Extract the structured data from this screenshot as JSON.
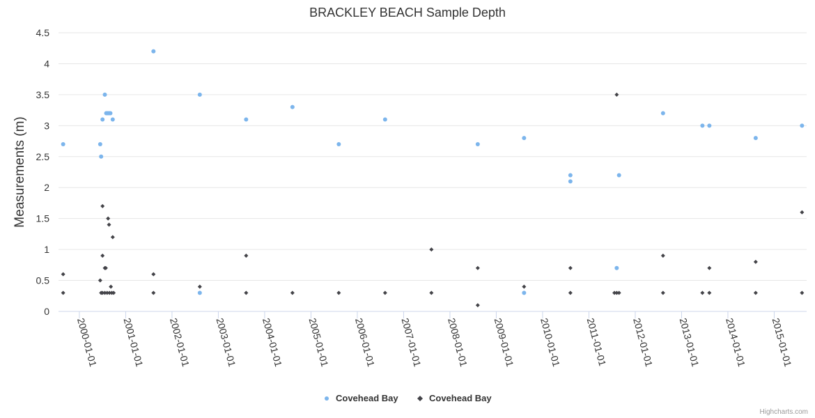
{
  "chart_data": {
    "type": "scatter",
    "title": "BRACKLEY BEACH Sample Depth",
    "ylabel": "Measurements (m)",
    "xlabel": "",
    "ylim": [
      0,
      4.5
    ],
    "yticks": [
      "0",
      "0.5",
      "1",
      "1.5",
      "2",
      "2.5",
      "3",
      "3.5",
      "4",
      "4.5"
    ],
    "xlim": [
      1999.55,
      2015.7
    ],
    "xticks": [
      {
        "year": 2000,
        "label": "2000-01-01"
      },
      {
        "year": 2001,
        "label": "2001-01-01"
      },
      {
        "year": 2002,
        "label": "2002-01-01"
      },
      {
        "year": 2003,
        "label": "2003-01-01"
      },
      {
        "year": 2004,
        "label": "2004-01-01"
      },
      {
        "year": 2005,
        "label": "2005-01-01"
      },
      {
        "year": 2006,
        "label": "2006-01-01"
      },
      {
        "year": 2007,
        "label": "2007-01-01"
      },
      {
        "year": 2008,
        "label": "2008-01-01"
      },
      {
        "year": 2009,
        "label": "2009-01-01"
      },
      {
        "year": 2010,
        "label": "2010-01-01"
      },
      {
        "year": 2011,
        "label": "2011-01-01"
      },
      {
        "year": 2012,
        "label": "2012-01-01"
      },
      {
        "year": 2013,
        "label": "2013-01-01"
      },
      {
        "year": 2014,
        "label": "2014-01-01"
      },
      {
        "year": 2015,
        "label": "2015-01-01"
      }
    ],
    "series": [
      {
        "name": "Covehead Bay",
        "marker": "circle",
        "color": "#7cb5ec",
        "points": [
          [
            1999.65,
            2.7
          ],
          [
            2000.45,
            2.7
          ],
          [
            2000.47,
            2.5
          ],
          [
            2000.5,
            3.1
          ],
          [
            2000.55,
            3.5
          ],
          [
            2000.58,
            3.2
          ],
          [
            2000.61,
            3.2
          ],
          [
            2000.64,
            3.2
          ],
          [
            2000.67,
            3.2
          ],
          [
            2000.72,
            3.1
          ],
          [
            2001.6,
            4.2
          ],
          [
            2002.6,
            3.5
          ],
          [
            2002.6,
            0.3
          ],
          [
            2003.6,
            3.1
          ],
          [
            2004.6,
            3.3
          ],
          [
            2005.6,
            2.7
          ],
          [
            2006.6,
            3.1
          ],
          [
            2008.6,
            2.7
          ],
          [
            2009.6,
            2.8
          ],
          [
            2009.6,
            0.3
          ],
          [
            2010.6,
            2.2
          ],
          [
            2010.6,
            2.1
          ],
          [
            2011.6,
            0.7
          ],
          [
            2011.65,
            2.2
          ],
          [
            2012.6,
            3.2
          ],
          [
            2013.45,
            3.0
          ],
          [
            2013.6,
            3.0
          ],
          [
            2014.6,
            2.8
          ],
          [
            2015.6,
            3.0
          ]
        ]
      },
      {
        "name": "Covehead Bay",
        "marker": "diamond",
        "color": "#434348",
        "points": [
          [
            1999.65,
            0.6
          ],
          [
            1999.65,
            0.3
          ],
          [
            2000.45,
            0.5
          ],
          [
            2000.47,
            0.3
          ],
          [
            2000.5,
            0.9
          ],
          [
            2000.5,
            1.7
          ],
          [
            2000.5,
            0.3
          ],
          [
            2000.55,
            0.7
          ],
          [
            2000.57,
            0.7
          ],
          [
            2000.55,
            0.3
          ],
          [
            2000.6,
            0.3
          ],
          [
            2000.62,
            1.5
          ],
          [
            2000.64,
            1.4
          ],
          [
            2000.65,
            0.3
          ],
          [
            2000.68,
            0.4
          ],
          [
            2000.7,
            0.3
          ],
          [
            2000.72,
            1.2
          ],
          [
            2000.74,
            0.3
          ],
          [
            2001.6,
            0.6
          ],
          [
            2001.6,
            0.3
          ],
          [
            2002.6,
            0.4
          ],
          [
            2003.6,
            0.9
          ],
          [
            2003.6,
            0.3
          ],
          [
            2004.6,
            0.3
          ],
          [
            2005.6,
            0.3
          ],
          [
            2006.6,
            0.3
          ],
          [
            2007.6,
            1.0
          ],
          [
            2007.6,
            0.3
          ],
          [
            2008.6,
            0.7
          ],
          [
            2008.6,
            0.1
          ],
          [
            2009.6,
            0.4
          ],
          [
            2010.6,
            0.7
          ],
          [
            2010.6,
            0.3
          ],
          [
            2011.6,
            3.5
          ],
          [
            2011.55,
            0.3
          ],
          [
            2011.6,
            0.3
          ],
          [
            2011.65,
            0.3
          ],
          [
            2012.6,
            0.9
          ],
          [
            2012.6,
            0.3
          ],
          [
            2013.45,
            0.3
          ],
          [
            2013.6,
            0.7
          ],
          [
            2013.6,
            0.3
          ],
          [
            2014.6,
            0.8
          ],
          [
            2014.6,
            0.3
          ],
          [
            2015.6,
            1.6
          ],
          [
            2015.6,
            0.3
          ]
        ]
      }
    ],
    "legend": {
      "position": "bottom-center",
      "entries": [
        "Covehead Bay",
        "Covehead Bay"
      ]
    },
    "credit": "Highcharts.com"
  }
}
